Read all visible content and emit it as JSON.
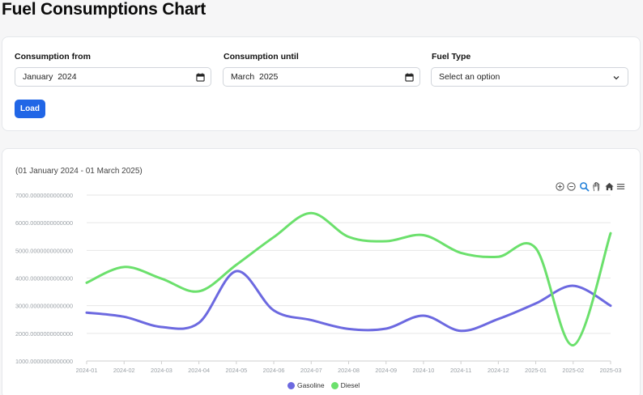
{
  "page": {
    "title": "Fuel Consumptions Chart"
  },
  "filters": {
    "from_label": "Consumption from",
    "from_value": "January  2024",
    "until_label": "Consumption until",
    "until_value": "March  2025",
    "fuel_label": "Fuel Type",
    "fuel_value": "Select an option",
    "load_label": "Load"
  },
  "chart_toolbar": {
    "icons": [
      "zoom-in-icon",
      "zoom-out-icon",
      "zoom-selection-icon",
      "pan-hand-icon",
      "home-reset-icon",
      "menu-icon"
    ]
  },
  "colors": {
    "accent": "#2166e6",
    "gasoline": "#6c69e0",
    "diesel": "#6be06c"
  },
  "chart_data": {
    "type": "line",
    "subtitle": "(01 January 2024 - 01 March 2025)",
    "x": [
      "2024-01",
      "2024-02",
      "2024-03",
      "2024-04",
      "2024-05",
      "2024-06",
      "2024-07",
      "2024-08",
      "2024-09",
      "2024-10",
      "2024-11",
      "2024-12",
      "2025-01",
      "2025-02",
      "2025-03"
    ],
    "yticks": [
      "1000.0000000000000",
      "2000.0000000000000",
      "3000.0000000000000",
      "4000.0000000000000",
      "5000.0000000000000",
      "6000.0000000000000",
      "7000.0000000000000"
    ],
    "ylim": [
      1000,
      7000
    ],
    "series": [
      {
        "name": "Gasoline",
        "values": [
          2750,
          2600,
          2230,
          2380,
          4250,
          2830,
          2480,
          2160,
          2170,
          2640,
          2090,
          2520,
          3080,
          3720,
          3000
        ]
      },
      {
        "name": "Diesel",
        "values": [
          3830,
          4400,
          3980,
          3520,
          4480,
          5480,
          6350,
          5490,
          5330,
          5550,
          4910,
          4770,
          5080,
          1570,
          5620
        ]
      }
    ],
    "grid": true,
    "legend": "bottom-center"
  }
}
